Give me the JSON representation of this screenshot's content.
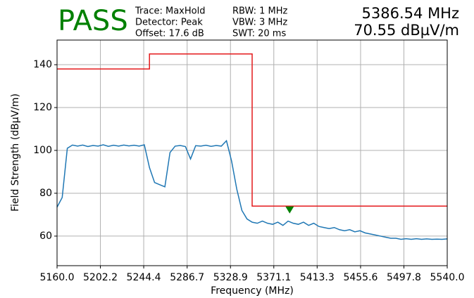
{
  "chart_data": {
    "type": "line",
    "status": "PASS",
    "status_color": "#008000",
    "settings": [
      "Trace: MaxHold",
      "Detector: Peak",
      "Offset: 17.6 dB",
      "RBW: 1 MHz",
      "VBW: 3 MHz",
      "SWT: 20 ms"
    ],
    "xlabel": "Frequency (MHz)",
    "ylabel": "Field Strength (dBµV/m)",
    "xlim": [
      5160,
      5540
    ],
    "ylim": [
      46.2,
      151.5
    ],
    "xticks": [
      {
        "value": 5160,
        "label": "5160.0"
      },
      5202.2,
      5244.4,
      5286.7,
      5328.9,
      5371.1,
      5413.3,
      5455.6,
      5497.8,
      {
        "value": 5540,
        "label": "5540.0"
      }
    ],
    "yticks": [
      60,
      80,
      100,
      120,
      140
    ],
    "grid": true,
    "series": [
      {
        "color": "#1f77b4",
        "x": [
          5160,
          5165,
          5170,
          5175,
          5180,
          5185,
          5190,
          5195,
          5200,
          5205,
          5210,
          5215,
          5220,
          5225,
          5230,
          5235,
          5240,
          5245,
          5250,
          5255,
          5260,
          5265,
          5270,
          5275,
          5280,
          5285,
          5290,
          5295,
          5300,
          5305,
          5310,
          5315,
          5320,
          5325,
          5330,
          5335,
          5340,
          5345,
          5350,
          5355,
          5360,
          5365,
          5370,
          5375,
          5380,
          5385,
          5390,
          5395,
          5400,
          5405,
          5410,
          5415,
          5420,
          5425,
          5430,
          5435,
          5440,
          5445,
          5450,
          5455,
          5460,
          5465,
          5470,
          5475,
          5480,
          5485,
          5490,
          5495,
          5500,
          5505,
          5510,
          5515,
          5520,
          5525,
          5530,
          5535,
          5540
        ],
        "values": [
          73.5,
          78,
          101,
          102.5,
          102,
          102.5,
          101.8,
          102.3,
          102,
          102.6,
          101.9,
          102.4,
          102,
          102.5,
          102.1,
          102.4,
          102,
          102.6,
          92,
          85,
          84,
          83,
          99,
          102,
          102.3,
          101.8,
          96,
          102.2,
          102,
          102.4,
          101.9,
          102.3,
          102,
          104.5,
          95,
          82,
          72,
          68,
          66.5,
          66,
          67,
          66,
          65.5,
          66.5,
          65,
          67,
          66,
          65.5,
          66.5,
          65,
          66,
          64.5,
          64,
          63.5,
          64,
          63,
          62.5,
          63,
          62,
          62.5,
          61.5,
          61,
          60.5,
          60,
          59.5,
          59,
          59,
          58.5,
          58.8,
          58.5,
          58.8,
          58.5,
          58.7,
          58.5,
          58.6,
          58.5,
          58.7
        ]
      },
      {
        "color": "#e41a1c",
        "x": [
          5160,
          5250,
          5250,
          5350,
          5350,
          5540
        ],
        "values": [
          138,
          138,
          145,
          145,
          74,
          74
        ]
      }
    ],
    "marker": {
      "x": 5386.54,
      "y": 70.55,
      "x_label": "5386.54 MHz",
      "y_label": "70.55 dBµV/m",
      "color": "#008000"
    }
  }
}
